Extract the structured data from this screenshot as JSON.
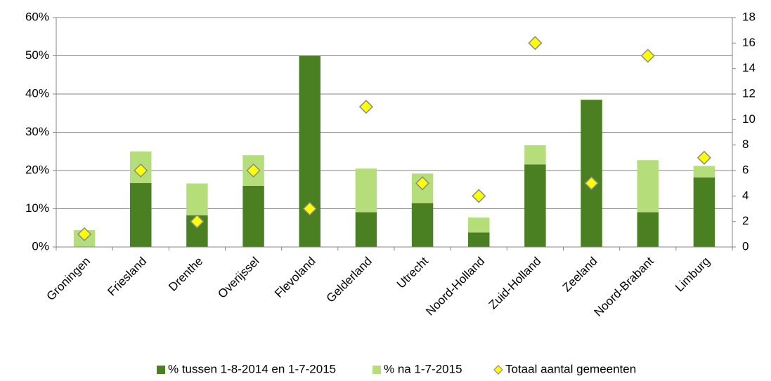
{
  "chart_data": {
    "type": "stacked_bar_with_markers",
    "categories": [
      "Groningen",
      "Friesland",
      "Drenthe",
      "Overijssel",
      "Flevoland",
      "Gelderland",
      "Utrecht",
      "Noord-Holland",
      "Zuid-Holland",
      "Zeeland",
      "Noord-Brabant",
      "Limburg"
    ],
    "series": [
      {
        "name": "% tussen 1-8-2014 en 1-7-2015",
        "color": "#4a7f22",
        "values": [
          0,
          16.7,
          8.3,
          16,
          50,
          9.1,
          11.5,
          3.8,
          21.6,
          38.5,
          9.1,
          18.2
        ]
      },
      {
        "name": "% na 1-7-2015",
        "color": "#b5dd7a",
        "values": [
          4.4,
          8.3,
          8.3,
          8,
          0,
          11.4,
          7.7,
          3.9,
          5,
          0,
          13.6,
          3
        ]
      },
      {
        "name": "Totaal aantal gemeenten",
        "color": "#ffff00",
        "axis": "y2",
        "values": [
          1,
          6,
          2,
          6,
          3,
          11,
          5,
          4,
          16,
          5,
          15,
          7
        ]
      }
    ],
    "ylim": [
      0,
      60
    ],
    "yticks": [
      {
        "value": 0,
        "label": "0%"
      },
      {
        "value": 10,
        "label": "10%"
      },
      {
        "value": 20,
        "label": "20%"
      },
      {
        "value": 30,
        "label": "30%"
      },
      {
        "value": 40,
        "label": "40%"
      },
      {
        "value": 50,
        "label": "50%"
      },
      {
        "value": 60,
        "label": "60%"
      }
    ],
    "y2lim": [
      0,
      18
    ],
    "y2ticks": [
      0,
      2,
      4,
      6,
      8,
      10,
      12,
      14,
      16,
      18
    ],
    "grid": true,
    "legend": "bottom"
  }
}
